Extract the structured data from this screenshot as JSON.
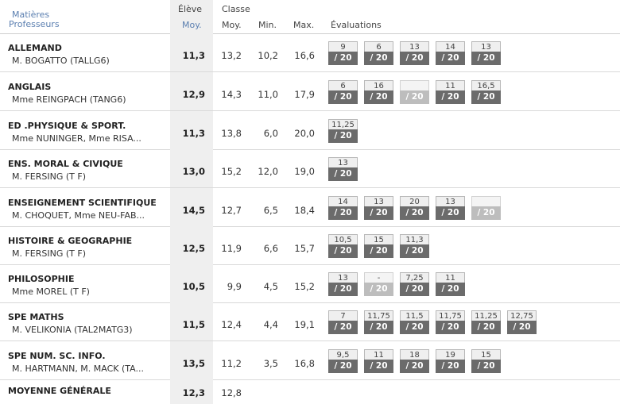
{
  "header": {
    "matieres": "Matières",
    "professeurs": "Professeurs",
    "eleve": "Élève",
    "eleve_moy": "Moy.",
    "classe": "Classe",
    "classe_moy": "Moy.",
    "min": "Min.",
    "max": "Max.",
    "evaluations": "Évaluations"
  },
  "rows": [
    {
      "subject": "ALLEMAND",
      "teacher": "M. BOGATTO (TALLG6)",
      "eleve": "11,3",
      "moy": "13,2",
      "min": "10,2",
      "max": "16,6",
      "evals": [
        {
          "n": "9",
          "d": "/ 20"
        },
        {
          "n": "6",
          "d": "/ 20"
        },
        {
          "n": "13",
          "d": "/ 20"
        },
        {
          "n": "14",
          "d": "/ 20"
        },
        {
          "n": "13",
          "d": "/ 20"
        }
      ]
    },
    {
      "subject": "ANGLAIS",
      "teacher": "Mme REINGPACH (TANG6)",
      "eleve": "12,9",
      "moy": "14,3",
      "min": "11,0",
      "max": "17,9",
      "evals": [
        {
          "n": "6",
          "d": "/ 20"
        },
        {
          "n": "16",
          "d": "/ 20"
        },
        {
          "n": "",
          "d": "/ 20",
          "na": true
        },
        {
          "n": "11",
          "d": "/ 20"
        },
        {
          "n": "16,5",
          "d": "/ 20"
        }
      ]
    },
    {
      "subject": "ED .PHYSIQUE & SPORT.",
      "teacher": "Mme NUNINGER, Mme RISA...",
      "eleve": "11,3",
      "moy": "13,8",
      "min": "6,0",
      "max": "20,0",
      "evals": [
        {
          "n": "11,25",
          "d": "/ 20"
        }
      ]
    },
    {
      "subject": "ENS. MORAL & CIVIQUE",
      "teacher": "M. FERSING (T F)",
      "eleve": "13,0",
      "moy": "15,2",
      "min": "12,0",
      "max": "19,0",
      "evals": [
        {
          "n": "13",
          "d": "/ 20"
        }
      ]
    },
    {
      "subject": "ENSEIGNEMENT SCIENTIFIQUE",
      "teacher": "M. CHOQUET, Mme NEU-FAB...",
      "eleve": "14,5",
      "moy": "12,7",
      "min": "6,5",
      "max": "18,4",
      "evals": [
        {
          "n": "14",
          "d": "/ 20"
        },
        {
          "n": "13",
          "d": "/ 20"
        },
        {
          "n": "20",
          "d": "/ 20"
        },
        {
          "n": "13",
          "d": "/ 20"
        },
        {
          "n": "",
          "d": "/ 20",
          "na": true
        }
      ]
    },
    {
      "subject": "HISTOIRE & GEOGRAPHIE",
      "teacher": "M. FERSING (T F)",
      "eleve": "12,5",
      "moy": "11,9",
      "min": "6,6",
      "max": "15,7",
      "evals": [
        {
          "n": "10,5",
          "d": "/ 20"
        },
        {
          "n": "15",
          "d": "/ 20"
        },
        {
          "n": "11,3",
          "d": "/ 20"
        }
      ]
    },
    {
      "subject": "PHILOSOPHIE",
      "teacher": "Mme MOREL (T F)",
      "eleve": "10,5",
      "moy": "9,9",
      "min": "4,5",
      "max": "15,2",
      "evals": [
        {
          "n": "13",
          "d": "/ 20"
        },
        {
          "n": "-",
          "d": "/ 20",
          "na": true
        },
        {
          "n": "7,25",
          "d": "/ 20"
        },
        {
          "n": "11",
          "d": "/ 20"
        }
      ]
    },
    {
      "subject": "SPE MATHS",
      "teacher": "M. VELIKONIA (TAL2MATG3)",
      "eleve": "11,5",
      "moy": "12,4",
      "min": "4,4",
      "max": "19,1",
      "evals": [
        {
          "n": "7",
          "d": "/ 20"
        },
        {
          "n": "11,75",
          "d": "/ 20"
        },
        {
          "n": "11,5",
          "d": "/ 20"
        },
        {
          "n": "11,75",
          "d": "/ 20"
        },
        {
          "n": "11,25",
          "d": "/ 20"
        },
        {
          "n": "12,75",
          "d": "/ 20"
        }
      ]
    },
    {
      "subject": "SPE NUM. SC. INFO.",
      "teacher": "M. HARTMANN, M. MACK (TA...",
      "eleve": "13,5",
      "moy": "11,2",
      "min": "3,5",
      "max": "16,8",
      "evals": [
        {
          "n": "9,5",
          "d": "/ 20"
        },
        {
          "n": "11",
          "d": "/ 20"
        },
        {
          "n": "18",
          "d": "/ 20"
        },
        {
          "n": "19",
          "d": "/ 20"
        },
        {
          "n": "15",
          "d": "/ 20"
        }
      ]
    }
  ],
  "general": {
    "label": "MOYENNE GÉNÉRALE",
    "eleve": "12,3",
    "moy": "12,8"
  }
}
